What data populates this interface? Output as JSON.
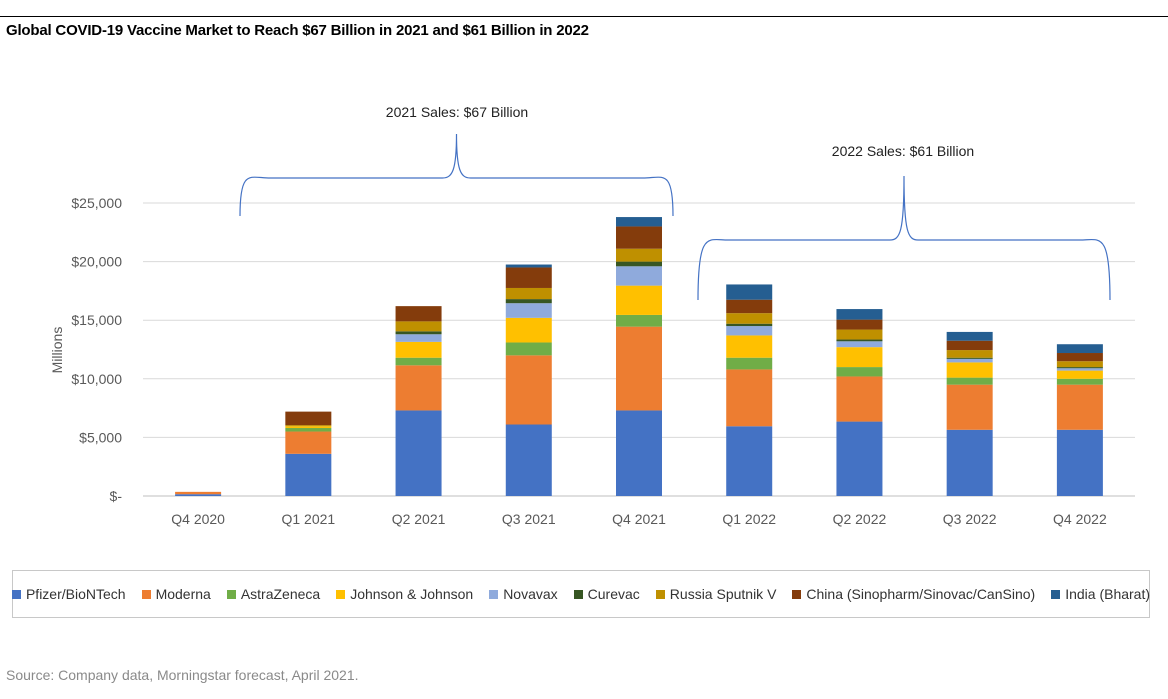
{
  "title": "Global COVID-19 Vaccine Market to Reach $67 Billion in 2021 and $61 Billion in 2022",
  "source": "Source: Company data, Morningstar forecast, April 2021.",
  "colors": {
    "Pfizer/BioNTech": "#4472c4",
    "Moderna": "#ed7d31",
    "AstraZeneca": "#70ad47",
    "Johnson & Johnson": "#ffc000",
    "Novavax": "#8faadc",
    "Curevac": "#375623",
    "Russia Sputnik V": "#bf9000",
    "China (Sinopharm/Sinovac/CanSino)": "#843c0c",
    "India (Bharat)": "#255e91"
  },
  "chart_data": {
    "type": "bar",
    "stacked": true,
    "categories": [
      "Q4 2020",
      "Q1 2021",
      "Q2 2021",
      "Q3 2021",
      "Q4 2021",
      "Q1 2022",
      "Q2 2022",
      "Q3 2022",
      "Q4 2022"
    ],
    "ylabel": "Millions",
    "ylim": [
      0,
      25000
    ],
    "yticks": [
      0,
      5000,
      10000,
      15000,
      20000,
      25000
    ],
    "ytick_labels": [
      "$-",
      "$5,000",
      "$10,000",
      "$15,000",
      "$20,000",
      "$25,000"
    ],
    "grid": true,
    "legend_position": "bottom",
    "series": [
      {
        "name": "Pfizer/BioNTech",
        "values": [
          154,
          3600,
          7300,
          6100,
          7300,
          5950,
          6350,
          5650,
          5650
        ]
      },
      {
        "name": "Moderna",
        "values": [
          200,
          1900,
          3850,
          5900,
          7150,
          4850,
          3850,
          3850,
          3850
        ]
      },
      {
        "name": "AstraZeneca",
        "values": [
          0,
          300,
          650,
          1100,
          1000,
          1000,
          800,
          600,
          500
        ]
      },
      {
        "name": "Johnson & Johnson",
        "values": [
          0,
          150,
          1350,
          2100,
          2500,
          1900,
          1700,
          1300,
          700
        ]
      },
      {
        "name": "Novavax",
        "values": [
          0,
          0,
          650,
          1250,
          1650,
          800,
          500,
          300,
          200
        ]
      },
      {
        "name": "Curevac",
        "values": [
          0,
          0,
          250,
          350,
          400,
          200,
          150,
          100,
          100
        ]
      },
      {
        "name": "Russia Sputnik V",
        "values": [
          0,
          100,
          850,
          950,
          1100,
          900,
          850,
          650,
          500
        ]
      },
      {
        "name": "China (Sinopharm/Sinovac/CanSino)",
        "values": [
          0,
          1150,
          1300,
          1750,
          1900,
          1150,
          850,
          800,
          700
        ]
      },
      {
        "name": "India (Bharat)",
        "values": [
          0,
          0,
          0,
          250,
          800,
          1300,
          900,
          750,
          750
        ]
      }
    ],
    "annotations": [
      {
        "text": "2021 Sales: $67 Billion",
        "spans": [
          "Q1 2021",
          "Q4 2021"
        ]
      },
      {
        "text": "2022 Sales: $61 Billion",
        "spans": [
          "Q1 2022",
          "Q4 2022"
        ]
      }
    ]
  }
}
